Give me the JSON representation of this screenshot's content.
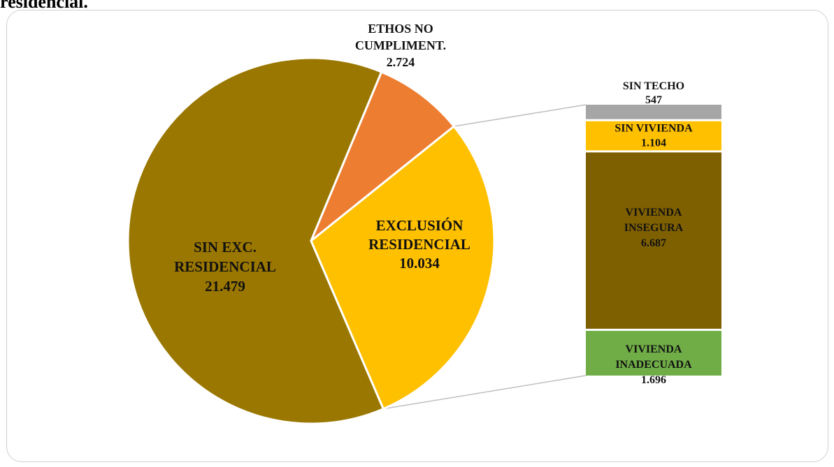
{
  "caption": "residencial.",
  "colors": {
    "sin_exc": "#9a7700",
    "ethos": "#ed7d31",
    "exclusion": "#ffc000",
    "sin_techo": "#a6a6a6",
    "sin_vivienda": "#ffc000",
    "vivienda_insegura": "#7f6000",
    "vivienda_inadecuada": "#70ad47",
    "connector": "#bfbfbf"
  },
  "chart_data": {
    "type": "pie",
    "subtype": "bar-of-pie",
    "pie": [
      {
        "label_lines": [
          "SIN EXC.",
          "RESIDENCIAL"
        ],
        "value": 21479,
        "value_label": "21.479",
        "color_key": "sin_exc"
      },
      {
        "label_lines": [
          "ETHOS NO",
          "CUMPLIMENT."
        ],
        "value": 2724,
        "value_label": "2.724",
        "color_key": "ethos"
      },
      {
        "label_lines": [
          "EXCLUSIÓN",
          "RESIDENCIAL"
        ],
        "value": 10034,
        "value_label": "10.034",
        "color_key": "exclusion"
      }
    ],
    "breakdown_of": "EXCLUSIÓN RESIDENCIAL",
    "bar": [
      {
        "label_lines": [
          "SIN TECHO"
        ],
        "value": 547,
        "value_label": "547",
        "color_key": "sin_techo"
      },
      {
        "label_lines": [
          "SIN VIVIENDA"
        ],
        "value": 1104,
        "value_label": "1.104",
        "color_key": "sin_vivienda"
      },
      {
        "label_lines": [
          "VIVIENDA",
          "INSEGURA"
        ],
        "value": 6687,
        "value_label": "6.687",
        "color_key": "vivienda_insegura"
      },
      {
        "label_lines": [
          "VIVIENDA",
          "INADECUADA"
        ],
        "value": 1696,
        "value_label": "1.696",
        "color_key": "vivienda_inadecuada"
      }
    ]
  }
}
